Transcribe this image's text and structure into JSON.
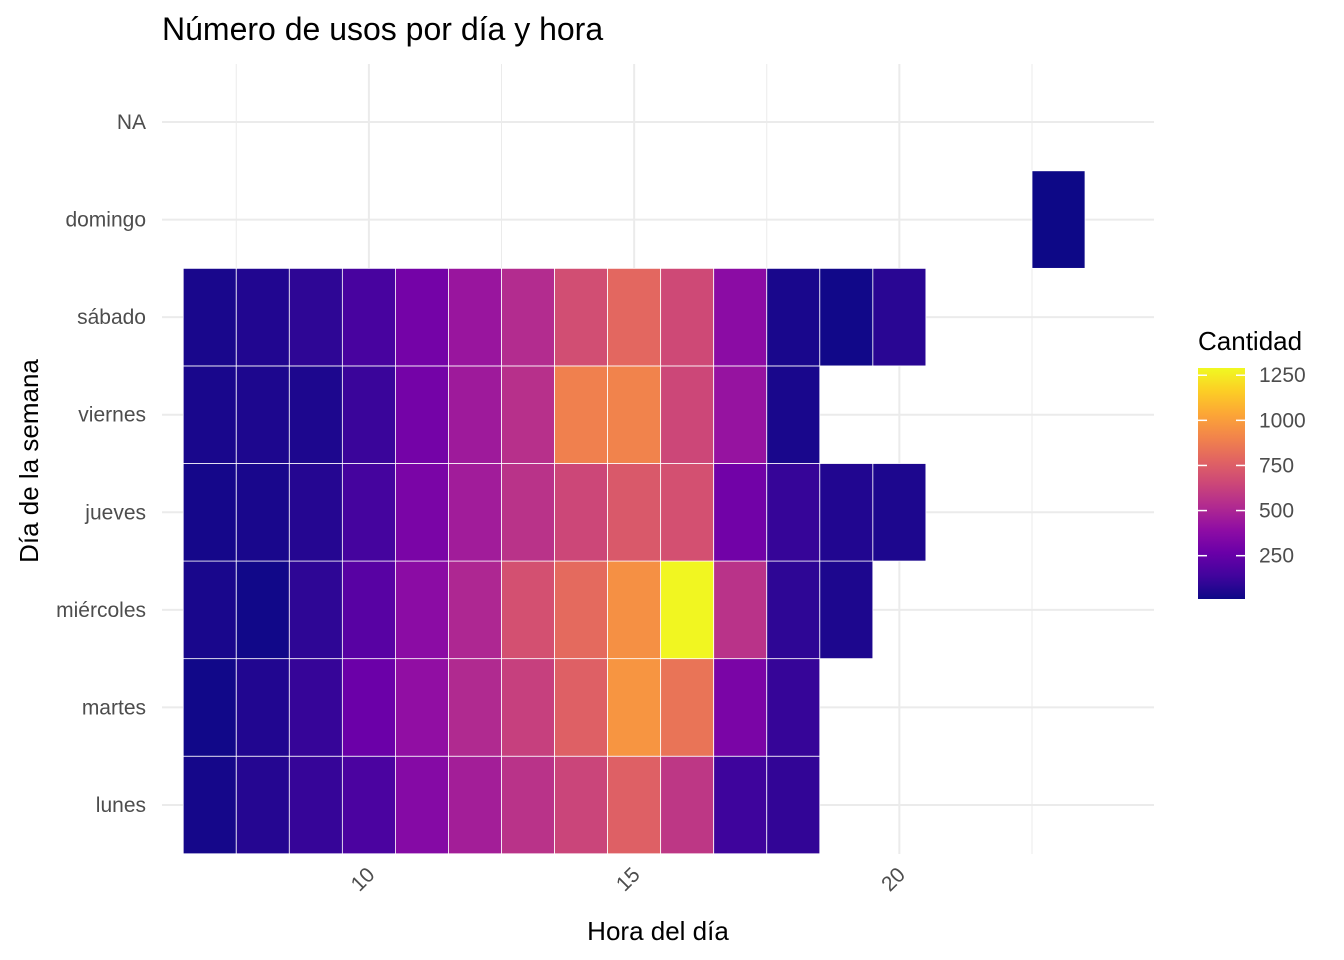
{
  "chart_data": {
    "type": "heatmap",
    "title": "Número de usos por día y hora",
    "xlabel": "Hora del día",
    "ylabel": "Día de la semana",
    "xlim": [
      6.1,
      24.8
    ],
    "x_ticks": [
      10,
      15,
      20
    ],
    "grid": true,
    "rows": [
      "lunes",
      "martes",
      "miércoles",
      "jueves",
      "viernes",
      "sábado",
      "domingo",
      "NA"
    ],
    "hours": [
      7,
      8,
      9,
      10,
      11,
      12,
      13,
      14,
      15,
      16,
      17,
      18,
      19,
      20,
      23
    ],
    "values": [
      [
        30,
        70,
        110,
        170,
        360,
        470,
        560,
        640,
        760,
        580,
        130,
        100,
        null,
        null,
        null
      ],
      [
        20,
        60,
        110,
        270,
        400,
        520,
        620,
        760,
        970,
        840,
        320,
        110,
        null,
        null,
        null
      ],
      [
        40,
        20,
        90,
        210,
        380,
        510,
        690,
        800,
        950,
        1280,
        560,
        90,
        50,
        null,
        null
      ],
      [
        30,
        40,
        70,
        150,
        320,
        460,
        560,
        650,
        730,
        690,
        290,
        110,
        60,
        50,
        null
      ],
      [
        40,
        50,
        50,
        120,
        300,
        450,
        550,
        890,
        900,
        650,
        420,
        40,
        null,
        null,
        null
      ],
      [
        40,
        60,
        90,
        160,
        300,
        430,
        530,
        680,
        790,
        660,
        380,
        40,
        20,
        80,
        null
      ],
      [
        null,
        null,
        null,
        null,
        null,
        null,
        null,
        null,
        null,
        null,
        null,
        null,
        null,
        null,
        10
      ],
      [
        null,
        null,
        null,
        null,
        null,
        null,
        null,
        null,
        null,
        null,
        null,
        null,
        null,
        null,
        null
      ]
    ],
    "legend": {
      "title": "Cantidad",
      "position": "right",
      "min": 10,
      "max": 1290,
      "ticks": [
        250,
        500,
        750,
        1000,
        1250
      ],
      "colormap": "plasma"
    }
  }
}
